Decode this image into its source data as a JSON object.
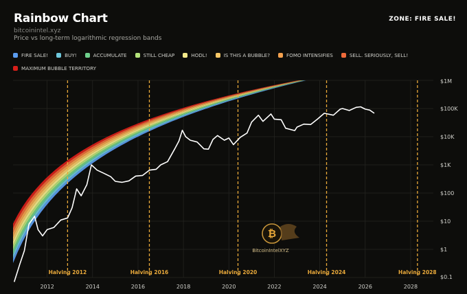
{
  "header": {
    "title": "Rainbow Chart",
    "site": "bitcoinintel.xyz",
    "subtitle": "Price vs long-term logarithmic regression bands",
    "zone": "ZONE: FIRE SALE!"
  },
  "watermark": {
    "text": "BitcoinIntelXYZ",
    "icon": "bitcoin-logo-icon"
  },
  "chart_data": {
    "type": "area",
    "xlim": [
      2010.5,
      2029
    ],
    "ylim": [
      0.1,
      1000000
    ],
    "yscale": "log",
    "x_ticks": [
      2012,
      2014,
      2016,
      2018,
      2020,
      2022,
      2024,
      2026,
      2028
    ],
    "y_ticks": [
      {
        "value": 1000000,
        "label": "$1M"
      },
      {
        "value": 100000,
        "label": "$100K"
      },
      {
        "value": 10000,
        "label": "$10K"
      },
      {
        "value": 1000,
        "label": "$1K"
      },
      {
        "value": 100,
        "label": "$100"
      },
      {
        "value": 10,
        "label": "$10"
      },
      {
        "value": 1,
        "label": "$1"
      },
      {
        "value": 0.1,
        "label": "$0.1"
      }
    ],
    "grid": true,
    "legend_position": "top",
    "bands": [
      {
        "name": "FIRE SALE!",
        "color": "#5b9cf0"
      },
      {
        "name": "BUY!",
        "color": "#6ec7dc"
      },
      {
        "name": "ACCUMULATE",
        "color": "#6fd08c"
      },
      {
        "name": "STILL CHEAP",
        "color": "#b4e37a"
      },
      {
        "name": "HODL!",
        "color": "#f3e98a"
      },
      {
        "name": "IS THIS A BUBBLE?",
        "color": "#f7c766"
      },
      {
        "name": "FOMO INTENSIFIES",
        "color": "#f4a14e"
      },
      {
        "name": "SELL. SERIOUSLY, SELL!",
        "color": "#ef6a3a"
      },
      {
        "name": "MAXIMUM BUBBLE TERRITORY",
        "color": "#d81f1a"
      }
    ],
    "halvings": [
      {
        "x": 2012.9,
        "label": "Halving 2012"
      },
      {
        "x": 2016.5,
        "label": "Halving 2016"
      },
      {
        "x": 2020.4,
        "label": "Halving 2020"
      },
      {
        "x": 2024.3,
        "label": "Halving 2024"
      },
      {
        "x": 2028.3,
        "label": "Halving 2028"
      }
    ],
    "price": {
      "x": [
        2010.55,
        2010.8,
        2011.0,
        2011.2,
        2011.45,
        2011.6,
        2011.8,
        2012.0,
        2012.3,
        2012.6,
        2012.9,
        2013.1,
        2013.3,
        2013.5,
        2013.75,
        2013.95,
        2014.2,
        2014.5,
        2014.8,
        2015.0,
        2015.3,
        2015.6,
        2015.9,
        2016.2,
        2016.5,
        2016.8,
        2017.0,
        2017.3,
        2017.6,
        2017.8,
        2017.95,
        2018.1,
        2018.3,
        2018.6,
        2018.9,
        2019.1,
        2019.3,
        2019.5,
        2019.8,
        2020.0,
        2020.2,
        2020.5,
        2020.8,
        2021.0,
        2021.3,
        2021.5,
        2021.85,
        2022.0,
        2022.3,
        2022.5,
        2022.9,
        2023.0,
        2023.3,
        2023.6,
        2023.9,
        2024.2,
        2024.6,
        2024.9,
        2025.0,
        2025.3,
        2025.6,
        2025.8,
        2026.0,
        2026.2,
        2026.4
      ],
      "y": [
        0.06,
        0.3,
        0.9,
        8,
        15,
        5,
        3,
        5,
        6,
        11,
        13,
        30,
        140,
        80,
        200,
        1000,
        650,
        500,
        380,
        260,
        240,
        270,
        400,
        420,
        650,
        700,
        1000,
        1300,
        3500,
        7000,
        17000,
        10000,
        7500,
        6500,
        3700,
        3600,
        8000,
        11000,
        7500,
        9000,
        5200,
        9500,
        13500,
        33000,
        58000,
        35000,
        64000,
        42000,
        40000,
        20000,
        16500,
        22000,
        28000,
        27000,
        42000,
        68000,
        58000,
        95000,
        100000,
        85000,
        110000,
        115000,
        95000,
        88000,
        68000
      ]
    }
  }
}
